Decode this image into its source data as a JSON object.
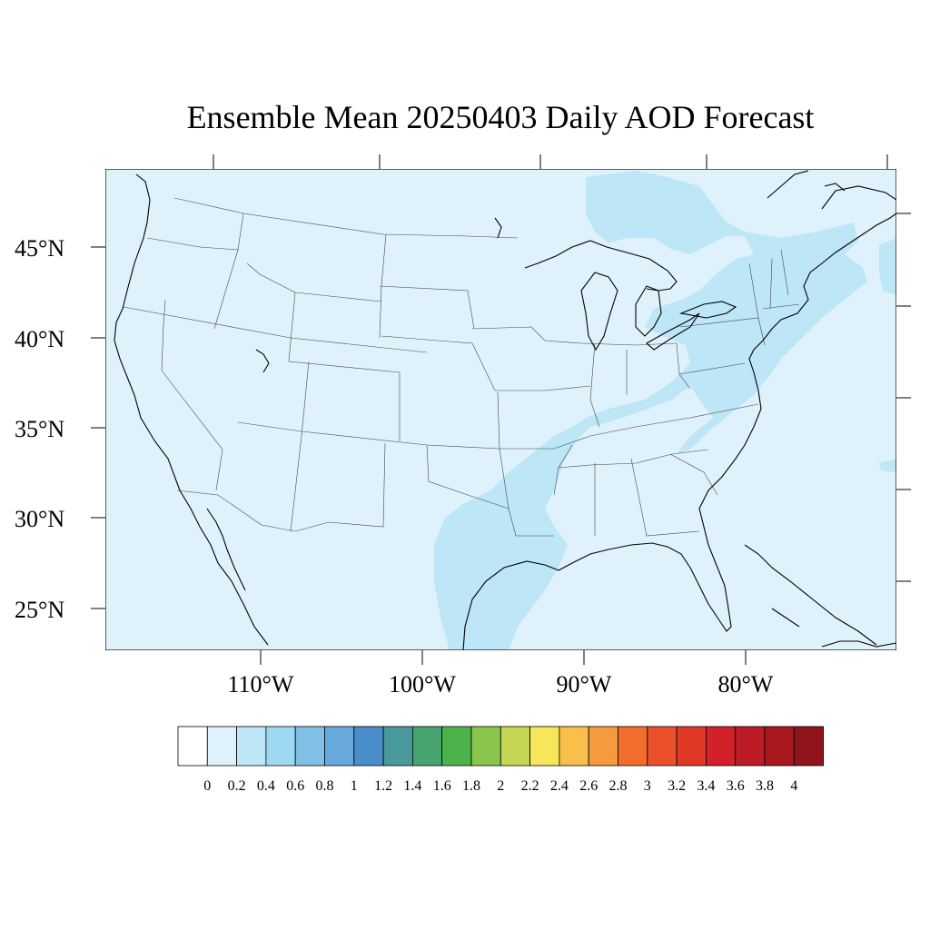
{
  "title": "Ensemble Mean 20250403 Daily AOD Forecast",
  "map": {
    "background_color": "#dff2fb",
    "aod_contour_color": "#bde6f7",
    "lat_labels": [
      "45°N",
      "40°N",
      "35°N",
      "30°N",
      "25°N"
    ],
    "lon_labels": [
      "110°W",
      "100°W",
      "90°W",
      "80°W"
    ]
  },
  "colorbar": {
    "levels": [
      "0",
      "0.2",
      "0.4",
      "0.6",
      "0.8",
      "1",
      "1.2",
      "1.4",
      "1.6",
      "1.8",
      "2",
      "2.2",
      "2.4",
      "2.6",
      "2.8",
      "3",
      "3.2",
      "3.4",
      "3.6",
      "3.8",
      "4"
    ],
    "colors": [
      "#ffffff",
      "#dff2fb",
      "#bde6f7",
      "#9fd8f3",
      "#82bfe6",
      "#68a9dc",
      "#4a8dcb",
      "#4a9a9d",
      "#46a56f",
      "#4cb34a",
      "#88c54a",
      "#c5d654",
      "#f7e55a",
      "#f8c04a",
      "#f59a3e",
      "#f26d2c",
      "#ea5029",
      "#e03a27",
      "#d32129",
      "#bd1b25",
      "#a8181e",
      "#8f151b"
    ]
  }
}
